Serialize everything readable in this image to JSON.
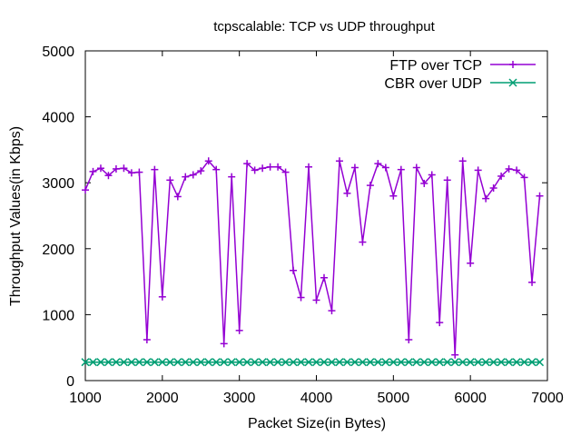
{
  "chart_data": {
    "type": "line",
    "title": "tcpscalable: TCP vs UDP throughput",
    "xlabel": "Packet Size(in Bytes)",
    "ylabel": "Throughput Values(in Kbps)",
    "xlim": [
      1000,
      7000
    ],
    "ylim": [
      0,
      5000
    ],
    "xticks": [
      1000,
      2000,
      3000,
      4000,
      5000,
      6000,
      7000
    ],
    "yticks": [
      0,
      1000,
      2000,
      3000,
      4000,
      5000
    ],
    "grid": false,
    "legend_position": "top-right",
    "series": [
      {
        "name": "FTP over TCP",
        "color": "#9400d3",
        "marker": "plus",
        "x": [
          1000,
          1100,
          1200,
          1300,
          1400,
          1500,
          1600,
          1700,
          1800,
          1900,
          2000,
          2100,
          2200,
          2300,
          2400,
          2500,
          2600,
          2700,
          2800,
          2900,
          3000,
          3100,
          3200,
          3300,
          3400,
          3500,
          3600,
          3700,
          3800,
          3900,
          4000,
          4100,
          4200,
          4300,
          4400,
          4500,
          4600,
          4700,
          4800,
          4900,
          5000,
          5100,
          5200,
          5300,
          5400,
          5500,
          5600,
          5700,
          5800,
          5900,
          6000,
          6100,
          6200,
          6300,
          6400,
          6500,
          6600,
          6700,
          6800,
          6900
        ],
        "y": [
          2890,
          3170,
          3220,
          3110,
          3210,
          3220,
          3150,
          3160,
          620,
          3200,
          1270,
          3040,
          2790,
          3090,
          3120,
          3180,
          3330,
          3200,
          560,
          3090,
          760,
          3290,
          3190,
          3220,
          3240,
          3240,
          3160,
          1670,
          1260,
          3240,
          1220,
          1560,
          1060,
          3330,
          2840,
          3230,
          2100,
          2960,
          3290,
          3230,
          2800,
          3200,
          620,
          3230,
          2990,
          3120,
          880,
          3040,
          390,
          3330,
          1780,
          3190,
          2760,
          2920,
          3100,
          3210,
          3190,
          3080,
          1490,
          2800
        ]
      },
      {
        "name": "CBR over UDP",
        "color": "#009e73",
        "marker": "cross",
        "x": [
          1000,
          1100,
          1200,
          1300,
          1400,
          1500,
          1600,
          1700,
          1800,
          1900,
          2000,
          2100,
          2200,
          2300,
          2400,
          2500,
          2600,
          2700,
          2800,
          2900,
          3000,
          3100,
          3200,
          3300,
          3400,
          3500,
          3600,
          3700,
          3800,
          3900,
          4000,
          4100,
          4200,
          4300,
          4400,
          4500,
          4600,
          4700,
          4800,
          4900,
          5000,
          5100,
          5200,
          5300,
          5400,
          5500,
          5600,
          5700,
          5800,
          5900,
          6000,
          6100,
          6200,
          6300,
          6400,
          6500,
          6600,
          6700,
          6800,
          6900
        ],
        "y": [
          280,
          280,
          280,
          280,
          280,
          280,
          280,
          280,
          280,
          280,
          280,
          280,
          280,
          280,
          280,
          280,
          280,
          280,
          280,
          280,
          280,
          280,
          280,
          280,
          280,
          280,
          280,
          280,
          280,
          280,
          280,
          280,
          280,
          280,
          280,
          280,
          280,
          280,
          280,
          280,
          280,
          280,
          280,
          280,
          280,
          280,
          280,
          280,
          280,
          280,
          280,
          280,
          280,
          280,
          280,
          280,
          280,
          280,
          280,
          280
        ]
      }
    ]
  }
}
